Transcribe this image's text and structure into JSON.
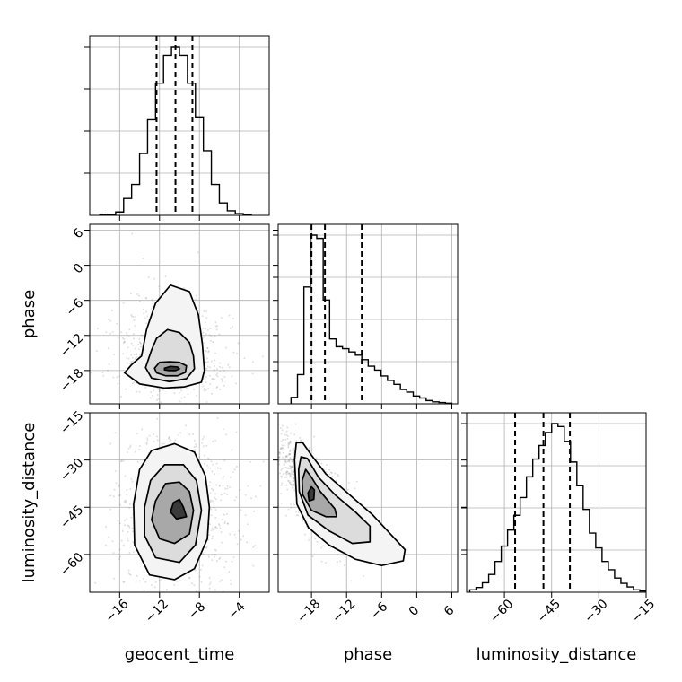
{
  "chart_data": {
    "type": "corner",
    "parameters": [
      "geocent_time",
      "phase",
      "luminosity_distance"
    ],
    "axis_labels": {
      "bottom": [
        "geocent_time",
        "phase",
        "luminosity_distance"
      ],
      "left": [
        "phase",
        "luminosity_distance"
      ]
    },
    "ranges": {
      "geocent_time": [
        -19.0,
        -1.0
      ],
      "phase": [
        -23.7,
        7.0
      ],
      "luminosity_distance": [
        -72.0,
        -15.0
      ]
    },
    "ticks": {
      "geocent_time": [
        -16,
        -12,
        -8,
        -4
      ],
      "phase": [
        -18,
        -12,
        -6,
        0,
        6
      ],
      "luminosity_distance": [
        -60,
        -45,
        -30,
        -15
      ]
    },
    "tick_labels": {
      "geocent_time": [
        "−16",
        "−12",
        "−8",
        "−4"
      ],
      "phase": [
        "−18",
        "−12",
        "−6",
        "0",
        "6"
      ],
      "luminosity_distance": [
        "−60",
        "−45",
        "−30",
        "−15"
      ]
    },
    "grid": true,
    "histograms": {
      "geocent_time": {
        "bin_edges": [
          -18.0,
          -17.2,
          -16.4,
          -15.6,
          -14.8,
          -14.0,
          -13.2,
          -12.4,
          -11.6,
          -10.8,
          -10.0,
          -9.2,
          -8.4,
          -7.6,
          -6.8,
          -6.0,
          -5.2,
          -4.4,
          -3.6,
          -2.8
        ],
        "counts": [
          1,
          2,
          6,
          30,
          55,
          110,
          170,
          235,
          285,
          300,
          285,
          235,
          175,
          115,
          55,
          22,
          8,
          3,
          1
        ]
      },
      "phase": {
        "bin_edges": [
          -21.5,
          -20.4,
          -19.3,
          -18.2,
          -17.1,
          -16.0,
          -14.9,
          -13.8,
          -12.7,
          -11.6,
          -10.5,
          -9.4,
          -8.3,
          -7.2,
          -6.1,
          -5.0,
          -3.9,
          -2.8,
          -1.7,
          -0.6,
          0.5,
          1.6,
          2.7,
          3.8,
          4.9,
          6.0
        ],
        "counts": [
          10,
          45,
          180,
          260,
          255,
          160,
          100,
          88,
          85,
          80,
          75,
          68,
          58,
          52,
          43,
          36,
          30,
          22,
          18,
          12,
          9,
          5,
          3,
          2,
          1
        ]
      },
      "luminosity_distance": {
        "bin_edges": [
          -71.0,
          -69.0,
          -67.0,
          -65.0,
          -63.0,
          -61.0,
          -59.0,
          -57.0,
          -55.0,
          -53.0,
          -51.0,
          -49.0,
          -47.0,
          -45.0,
          -43.0,
          -41.0,
          -39.0,
          -37.0,
          -35.0,
          -33.0,
          -31.0,
          -29.0,
          -27.0,
          -25.0,
          -23.0,
          -21.0,
          -19.0,
          -17.0,
          -15.0
        ],
        "counts": [
          4,
          8,
          16,
          30,
          52,
          78,
          105,
          130,
          160,
          195,
          225,
          248,
          270,
          285,
          280,
          255,
          220,
          180,
          140,
          100,
          75,
          52,
          38,
          24,
          15,
          9,
          4,
          2
        ]
      }
    },
    "quantiles": {
      "geocent_time": [
        -12.3,
        -10.4,
        -8.7
      ],
      "phase": [
        -18.0,
        -15.7,
        -9.4
      ],
      "luminosity_distance": [
        -56.6,
        -47.6,
        -39.2
      ]
    },
    "contours": {
      "phase_vs_geocent_time": [
        {
          "level": "innermost",
          "points": [
            [
              -11.5,
              -17.6
            ],
            [
              -10.9,
              -17.3
            ],
            [
              -10.2,
              -17.4
            ],
            [
              -10.0,
              -17.7
            ],
            [
              -10.4,
              -18.0
            ],
            [
              -11.0,
              -18.0
            ],
            [
              -11.5,
              -17.9
            ]
          ]
        },
        {
          "level": "inner",
          "points": [
            [
              -12.5,
              -17.6
            ],
            [
              -12.0,
              -16.6
            ],
            [
              -11.0,
              -16.5
            ],
            [
              -10.0,
              -16.6
            ],
            [
              -9.3,
              -17.2
            ],
            [
              -9.4,
              -18.3
            ],
            [
              -10.2,
              -18.9
            ],
            [
              -11.4,
              -18.9
            ],
            [
              -12.3,
              -18.4
            ]
          ]
        },
        {
          "level": "middle",
          "points": [
            [
              -13.4,
              -17.5
            ],
            [
              -12.8,
              -14.5
            ],
            [
              -12.3,
              -12.5
            ],
            [
              -11.2,
              -11.0
            ],
            [
              -10.0,
              -11.5
            ],
            [
              -9.0,
              -13.2
            ],
            [
              -8.6,
              -15.5
            ],
            [
              -8.5,
              -17.7
            ],
            [
              -9.3,
              -19.4
            ],
            [
              -11.0,
              -19.9
            ],
            [
              -12.8,
              -19.3
            ]
          ]
        },
        {
          "level": "outer",
          "points": [
            [
              -15.5,
              -18.4
            ],
            [
              -14.8,
              -17.0
            ],
            [
              -13.8,
              -15.5
            ],
            [
              -13.3,
              -11.0
            ],
            [
              -12.4,
              -6.5
            ],
            [
              -10.9,
              -3.4
            ],
            [
              -9.0,
              -4.5
            ],
            [
              -8.1,
              -8.5
            ],
            [
              -7.7,
              -13.5
            ],
            [
              -7.5,
              -18.0
            ],
            [
              -7.8,
              -20.0
            ],
            [
              -9.5,
              -20.8
            ],
            [
              -11.5,
              -21.0
            ],
            [
              -14.0,
              -20.3
            ]
          ]
        }
      ],
      "luminosity_distance_vs_geocent_time": [
        {
          "level": "innermost",
          "points": [
            [
              -10.6,
              -43.5
            ],
            [
              -10.0,
              -42.5
            ],
            [
              -9.6,
              -45.0
            ],
            [
              -9.3,
              -48.0
            ],
            [
              -10.3,
              -48.7
            ],
            [
              -10.9,
              -46.5
            ]
          ]
        },
        {
          "level": "inner",
          "points": [
            [
              -12.4,
              -43.0
            ],
            [
              -11.4,
              -37.5
            ],
            [
              -10.0,
              -37.0
            ],
            [
              -9.0,
              -40.0
            ],
            [
              -8.6,
              -46.0
            ],
            [
              -9.0,
              -53.5
            ],
            [
              -10.5,
              -56.5
            ],
            [
              -12.0,
              -55.0
            ],
            [
              -12.8,
              -49.0
            ]
          ]
        },
        {
          "level": "middle",
          "points": [
            [
              -13.5,
              -45.0
            ],
            [
              -12.9,
              -36.5
            ],
            [
              -11.5,
              -31.5
            ],
            [
              -9.6,
              -31.5
            ],
            [
              -8.3,
              -36.5
            ],
            [
              -7.8,
              -46.0
            ],
            [
              -8.4,
              -57.0
            ],
            [
              -10.0,
              -62.5
            ],
            [
              -12.4,
              -61.0
            ],
            [
              -13.5,
              -54.0
            ]
          ]
        },
        {
          "level": "outer",
          "points": [
            [
              -14.6,
              -44.0
            ],
            [
              -14.0,
              -33.0
            ],
            [
              -12.8,
              -27.0
            ],
            [
              -10.5,
              -24.8
            ],
            [
              -8.5,
              -27.5
            ],
            [
              -7.4,
              -35.0
            ],
            [
              -7.0,
              -45.0
            ],
            [
              -7.2,
              -55.0
            ],
            [
              -8.5,
              -64.5
            ],
            [
              -10.5,
              -68.0
            ],
            [
              -13.0,
              -66.5
            ],
            [
              -14.5,
              -57.0
            ]
          ]
        }
      ],
      "luminosity_distance_vs_phase": [
        {
          "level": "innermost",
          "points": [
            [
              -18.6,
              -40.5
            ],
            [
              -18.0,
              -38.5
            ],
            [
              -17.5,
              -39.5
            ],
            [
              -17.6,
              -42.5
            ],
            [
              -18.4,
              -43.0
            ]
          ]
        },
        {
          "level": "inner",
          "points": [
            [
              -19.6,
              -36.5
            ],
            [
              -19.0,
              -33.0
            ],
            [
              -18.0,
              -35.5
            ],
            [
              -16.5,
              -40.0
            ],
            [
              -14.0,
              -45.5
            ],
            [
              -13.7,
              -48.0
            ],
            [
              -15.5,
              -48.0
            ],
            [
              -18.0,
              -46.0
            ],
            [
              -19.5,
              -41.0
            ]
          ]
        },
        {
          "level": "middle",
          "points": [
            [
              -20.2,
              -33.0
            ],
            [
              -19.8,
              -29.0
            ],
            [
              -18.7,
              -29.5
            ],
            [
              -16.8,
              -35.5
            ],
            [
              -14.0,
              -41.0
            ],
            [
              -10.5,
              -46.5
            ],
            [
              -8.0,
              -51.0
            ],
            [
              -8.0,
              -56.0
            ],
            [
              -11.0,
              -56.5
            ],
            [
              -15.0,
              -52.5
            ],
            [
              -18.6,
              -47.5
            ],
            [
              -20.1,
              -40.0
            ]
          ]
        },
        {
          "level": "outer",
          "points": [
            [
              -20.9,
              -30.0
            ],
            [
              -20.6,
              -24.5
            ],
            [
              -19.5,
              -24.5
            ],
            [
              -18.0,
              -28.5
            ],
            [
              -15.5,
              -34.5
            ],
            [
              -11.5,
              -41.0
            ],
            [
              -7.5,
              -47.5
            ],
            [
              -4.5,
              -53.5
            ],
            [
              -2.0,
              -58.5
            ],
            [
              -2.3,
              -62.0
            ],
            [
              -6.0,
              -63.5
            ],
            [
              -10.5,
              -61.5
            ],
            [
              -15.0,
              -57.0
            ],
            [
              -18.5,
              -51.5
            ],
            [
              -20.5,
              -44.0
            ]
          ]
        }
      ]
    },
    "density_peaks": {
      "phase_vs_geocent_time": {
        "center": [
          -10.6,
          -17.7
        ],
        "spread": [
          1.35,
          1.6
        ]
      },
      "luminosity_distance_vs_geocent_time": {
        "center": [
          -10.3,
          -46.0
        ],
        "spread": [
          1.6,
          7.0
        ]
      },
      "luminosity_distance_vs_phase": {
        "center": [
          -17.8,
          -40.0
        ],
        "spread": [
          2.0,
          5.0
        ]
      }
    },
    "colors": {
      "line": "#000000",
      "grid": "#b0b0b0",
      "points": "#555555"
    }
  }
}
